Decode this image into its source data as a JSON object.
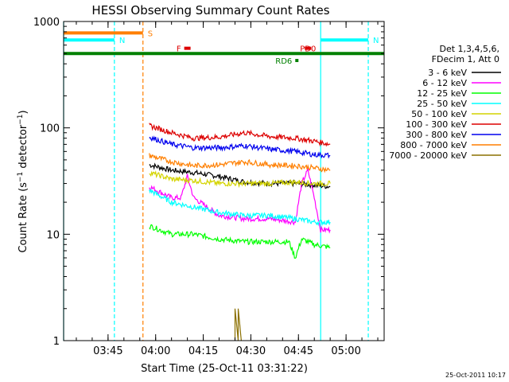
{
  "chart_data": {
    "type": "line",
    "title": "HESSI Observing Summary Count Rates",
    "xlabel": "Start Time (25-Oct-11 03:31:22)",
    "ylabel": "Count Rate (s-1 detector-1)",
    "yscale": "log",
    "ylim": [
      1,
      1000
    ],
    "xlim": [
      "03:31",
      "05:12"
    ],
    "x_ticks": [
      "03:45",
      "04:00",
      "04:15",
      "04:30",
      "04:45",
      "05:00"
    ],
    "y_ticks": [
      "1",
      "10",
      "100",
      "1000"
    ],
    "grid": false,
    "legend_position": "right",
    "legend_header": [
      "Det 1,3,4,5,6,",
      "FDecim 1, Att 0"
    ],
    "footer_date": "25-Oct-2011 10:17",
    "series": [
      {
        "name": "3 - 6 keV",
        "color": "#000000",
        "x": [
          "03:58",
          "04:05",
          "04:12",
          "04:20",
          "04:28",
          "04:36",
          "04:44",
          "04:50",
          "04:55"
        ],
        "values": [
          45,
          40,
          38,
          35,
          31,
          30,
          30,
          29,
          28
        ]
      },
      {
        "name": "6 - 12 keV",
        "color": "#ff00ff",
        "x": [
          "03:58",
          "04:05",
          "04:08",
          "04:10",
          "04:12",
          "04:20",
          "04:28",
          "04:36",
          "04:44",
          "04:46",
          "04:48",
          "04:50",
          "04:52",
          "04:55"
        ],
        "values": [
          28,
          22,
          22,
          35,
          22,
          15,
          14,
          14,
          13,
          30,
          40,
          22,
          11,
          11
        ]
      },
      {
        "name": "12 - 25 keV",
        "color": "#00ff00",
        "x": [
          "03:58",
          "04:05",
          "04:12",
          "04:20",
          "04:28",
          "04:36",
          "04:42",
          "04:44",
          "04:46",
          "04:50",
          "04:55"
        ],
        "values": [
          12,
          10,
          10,
          9,
          8.5,
          8.5,
          8.5,
          6,
          9,
          8,
          7.5
        ]
      },
      {
        "name": "25 - 50 keV",
        "color": "#00ffff",
        "x": [
          "03:58",
          "04:05",
          "04:12",
          "04:20",
          "04:28",
          "04:36",
          "04:44",
          "04:50",
          "04:55"
        ],
        "values": [
          26,
          20,
          18,
          16,
          15,
          15,
          14,
          13,
          13
        ]
      },
      {
        "name": "50 - 100 keV",
        "color": "#d4d400",
        "x": [
          "03:58",
          "04:05",
          "04:12",
          "04:20",
          "04:28",
          "04:36",
          "04:44",
          "04:50",
          "04:55"
        ],
        "values": [
          38,
          33,
          32,
          30,
          30,
          30,
          31,
          30,
          30
        ]
      },
      {
        "name": "100 - 300 keV",
        "color": "#dd0000",
        "x": [
          "03:58",
          "04:05",
          "04:12",
          "04:20",
          "04:28",
          "04:36",
          "04:44",
          "04:50",
          "04:55"
        ],
        "values": [
          105,
          90,
          80,
          82,
          90,
          83,
          80,
          75,
          70
        ]
      },
      {
        "name": "300 - 800 keV",
        "color": "#0000ee",
        "x": [
          "03:58",
          "04:05",
          "04:12",
          "04:20",
          "04:28",
          "04:36",
          "04:44",
          "04:50",
          "04:55"
        ],
        "values": [
          82,
          70,
          65,
          65,
          68,
          63,
          60,
          56,
          55
        ]
      },
      {
        "name": "800 - 7000 keV",
        "color": "#ff7f00",
        "x": [
          "03:58",
          "04:05",
          "04:12",
          "04:20",
          "04:28",
          "04:36",
          "04:44",
          "04:50",
          "04:55"
        ],
        "values": [
          55,
          48,
          44,
          45,
          48,
          45,
          44,
          42,
          40
        ]
      },
      {
        "name": "7000 - 20000 keV",
        "color": "#8b7000",
        "x": [
          "04:25",
          "04:25",
          "04:26",
          "04:26",
          "04:27"
        ],
        "values": [
          1,
          2,
          1,
          2,
          1
        ]
      }
    ],
    "flags": [
      {
        "label": "S",
        "color": "#ff7f00",
        "x_start": "03:31",
        "x_end": "03:56",
        "y": 780
      },
      {
        "label": "N",
        "color": "#00ffff",
        "x_start": "03:31",
        "x_end": "03:47",
        "y": 670
      },
      {
        "label": "N",
        "color": "#00ffff",
        "x_start": "04:52",
        "x_end": "05:07",
        "y": 670
      },
      {
        "label": "F",
        "color": "#dd0000",
        "x_start": "04:09",
        "x_end": "04:11",
        "y": 560
      },
      {
        "label": "PD0",
        "color": "#dd0000",
        "x_start": "04:47",
        "x_end": "04:49",
        "y": 560
      },
      {
        "label": "",
        "color": "#008000",
        "x_start": "03:31",
        "x_end": "05:12",
        "y": 500
      },
      {
        "label": "RD6",
        "color": "#008000",
        "x_start": "04:44",
        "x_end": "04:45",
        "y": 430
      }
    ],
    "vlines": [
      {
        "x": "03:31",
        "color": "#00ffff",
        "dashed": false
      },
      {
        "x": "03:47",
        "color": "#00ffff",
        "dashed": true
      },
      {
        "x": "03:56",
        "color": "#ff7f00",
        "dashed": true
      },
      {
        "x": "04:52",
        "color": "#00ffff",
        "dashed": false
      },
      {
        "x": "05:07",
        "color": "#00ffff",
        "dashed": true
      }
    ]
  }
}
